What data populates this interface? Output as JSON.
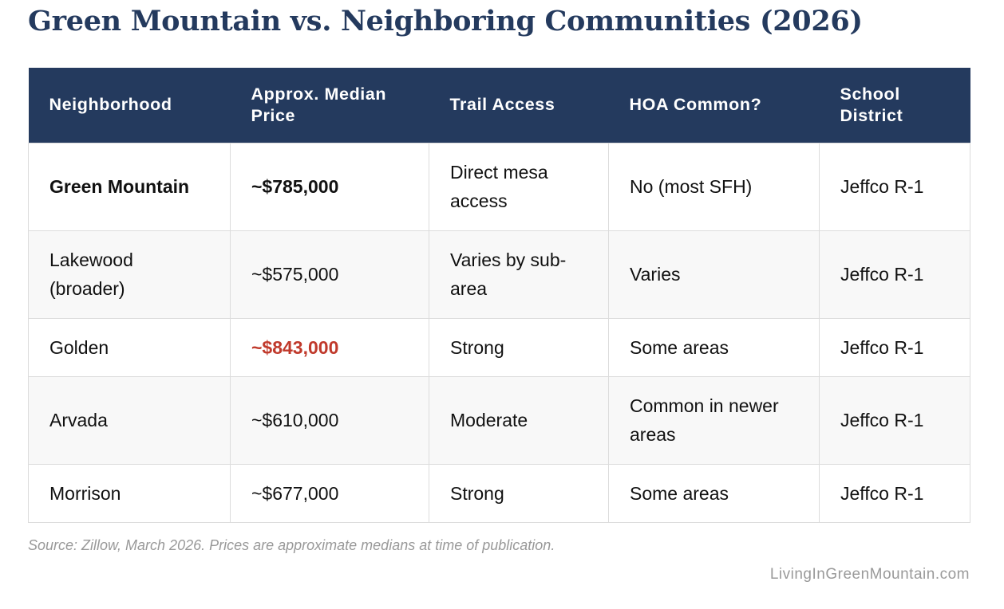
{
  "title": "Green Mountain vs. Neighboring Communities (2026)",
  "table": {
    "headers": [
      "Neighborhood",
      "Approx. Median Price",
      "Trail Access",
      "HOA Common?",
      "School District"
    ],
    "rows": [
      [
        "Green Mountain",
        "~$785,000",
        "Direct mesa access",
        "No (most SFH)",
        "Jeffco R-1"
      ],
      [
        "Lakewood (broader)",
        "~$575,000",
        "Varies by sub-area",
        "Varies",
        "Jeffco R-1"
      ],
      [
        "Golden",
        "~$843,000",
        "Strong",
        "Some areas",
        "Jeffco R-1"
      ],
      [
        "Arvada",
        "~$610,000",
        "Moderate",
        "Common in newer areas",
        "Jeffco R-1"
      ],
      [
        "Morrison",
        "~$677,000",
        "Strong",
        "Some areas",
        "Jeffco R-1"
      ]
    ]
  },
  "colors": {
    "header_background": "#243a5e",
    "title_text": "#243a5e",
    "highlight_price": "#c0392b",
    "alternate_row": "#f8f8f8",
    "muted_text": "#999999"
  },
  "source_note": "Source: Zillow, March 2026. Prices are approximate medians at time of publication.",
  "brand": "LivingInGreenMountain.com"
}
